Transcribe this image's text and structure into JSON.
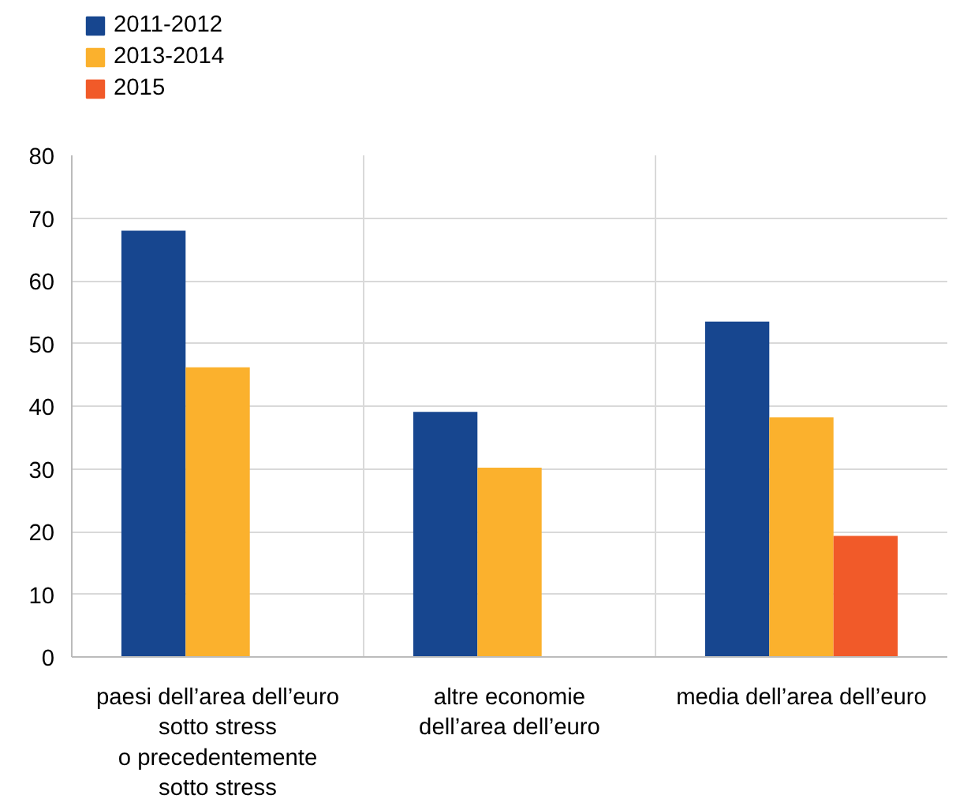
{
  "chart_data": {
    "type": "bar",
    "categories": [
      "paesi dell’area dell’euro\nsotto stress\no precedentemente\nsotto stress",
      "altre economie\ndell’area dell’euro",
      "media dell’area dell’euro"
    ],
    "series": [
      {
        "name": "2011-2012",
        "color": "#17468f",
        "values": [
          68,
          39.1,
          53.5
        ]
      },
      {
        "name": "2013-2014",
        "color": "#fbb12d",
        "values": [
          46.2,
          30.2,
          38.2
        ]
      },
      {
        "name": "2015",
        "color": "#f15a29",
        "values": [
          null,
          null,
          19.3
        ]
      }
    ],
    "ylim": [
      0,
      80
    ],
    "yticks": [
      0,
      10,
      20,
      30,
      40,
      50,
      60,
      70,
      80
    ],
    "grid": true,
    "legend": "top left"
  }
}
